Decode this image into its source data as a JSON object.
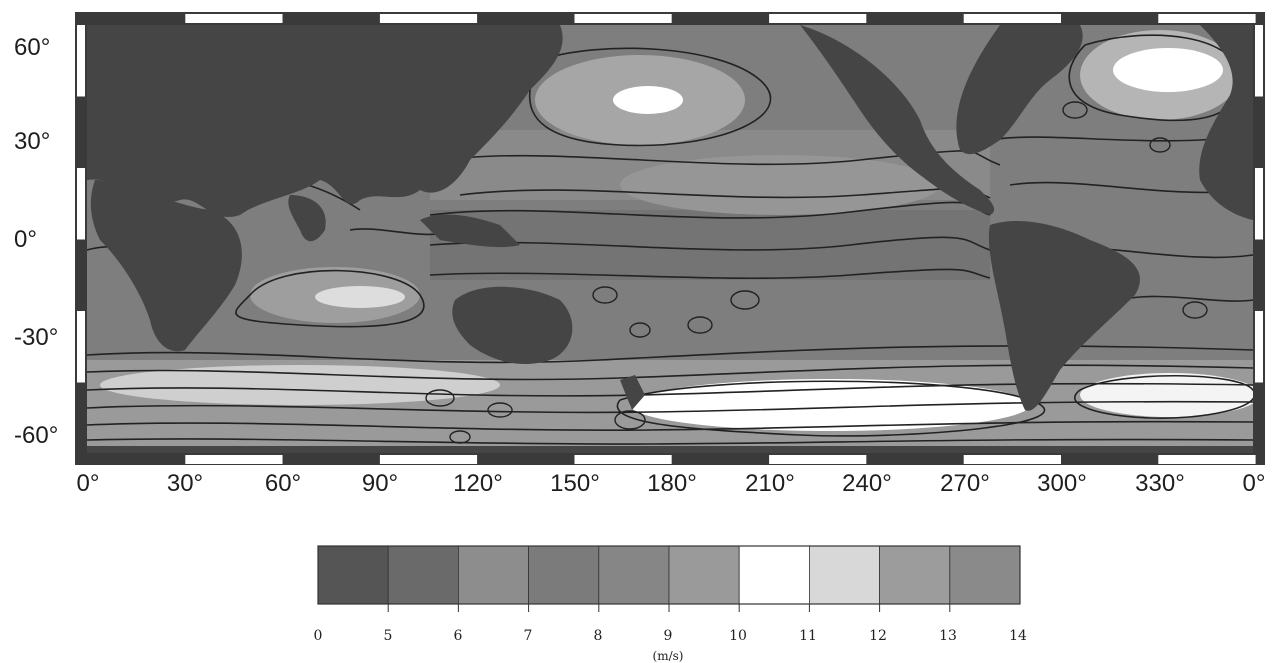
{
  "map": {
    "lat_ticks": [
      "60°",
      "30°",
      "0°",
      "-30°",
      "-60°"
    ],
    "lon_ticks": [
      "0°",
      "30°",
      "60°",
      "90°",
      "120°",
      "150°",
      "180°",
      "210°",
      "240°",
      "270°",
      "300°",
      "330°",
      "0°"
    ]
  },
  "colorbar": {
    "labels": [
      "0",
      "5",
      "6",
      "7",
      "8",
      "9",
      "10",
      "11",
      "12",
      "13",
      "14"
    ],
    "unit": "(m/s)",
    "colors": [
      "#555555",
      "#6a6a6a",
      "#8d8d8d",
      "#7b7b7b",
      "#868686",
      "#9a9a9a",
      "#ffffff",
      "#d8d8d8",
      "#9c9c9c",
      "#8a8a8a"
    ]
  },
  "colors": {
    "land": "#454545",
    "ocean_base": "#7e7e7e",
    "contour": "#222222"
  }
}
